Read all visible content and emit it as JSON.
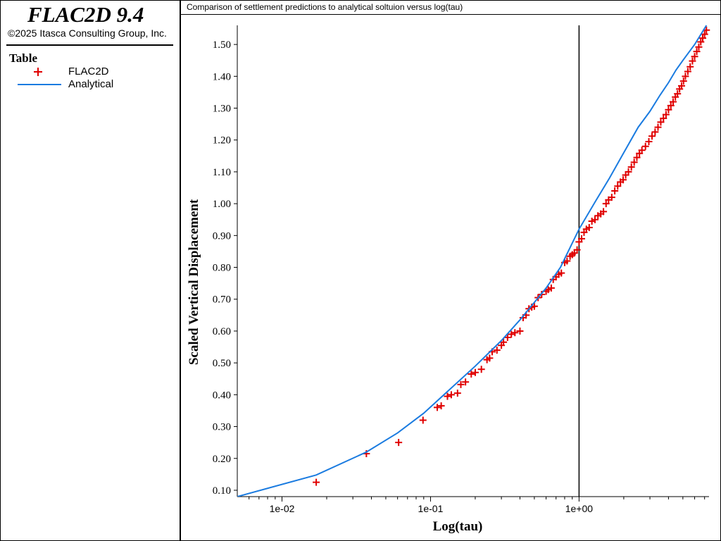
{
  "app": {
    "title": "FLAC2D 9.4",
    "copyright": "©2025 Itasca Consulting Group, Inc."
  },
  "legend": {
    "title": "Table",
    "items": [
      {
        "label": "FLAC2D",
        "marker": "plus",
        "color": "#e00000"
      },
      {
        "label": "Analytical",
        "marker": "line",
        "color": "#1a7be0"
      }
    ]
  },
  "chart_title": "Comparison of settlement predictions to analytical soltuion versus log(tau)",
  "chart_data": {
    "type": "scatter",
    "title": "Comparison of settlement predictions to analytical soltuion versus log(tau)",
    "xlabel": "Log(tau)",
    "ylabel": "Scaled Vertical Displacement",
    "x_scale": "log",
    "xlim": [
      0.005,
      7.5
    ],
    "ylim": [
      0.08,
      1.56
    ],
    "x_ticks": [
      "1e-02",
      "1e-01",
      "1e+00"
    ],
    "x_tick_values": [
      0.01,
      0.1,
      1
    ],
    "y_ticks": [
      "0.10",
      "0.20",
      "0.30",
      "0.40",
      "0.50",
      "0.60",
      "0.70",
      "0.80",
      "0.90",
      "1.00",
      "1.10",
      "1.20",
      "1.30",
      "1.40",
      "1.50"
    ],
    "y_tick_values": [
      0.1,
      0.2,
      0.3,
      0.4,
      0.5,
      0.6,
      0.7,
      0.8,
      0.9,
      1.0,
      1.1,
      1.2,
      1.3,
      1.4,
      1.5
    ],
    "reference_line_x": 1,
    "series": [
      {
        "name": "FLAC2D",
        "kind": "scatter",
        "color": "#e00000",
        "points": [
          [
            0.017,
            0.125
          ],
          [
            0.037,
            0.215
          ],
          [
            0.061,
            0.25
          ],
          [
            0.089,
            0.32
          ],
          [
            0.111,
            0.36
          ],
          [
            0.118,
            0.365
          ],
          [
            0.13,
            0.395
          ],
          [
            0.138,
            0.4
          ],
          [
            0.152,
            0.405
          ],
          [
            0.16,
            0.432
          ],
          [
            0.172,
            0.44
          ],
          [
            0.188,
            0.465
          ],
          [
            0.2,
            0.47
          ],
          [
            0.22,
            0.48
          ],
          [
            0.24,
            0.51
          ],
          [
            0.25,
            0.515
          ],
          [
            0.26,
            0.535
          ],
          [
            0.28,
            0.54
          ],
          [
            0.3,
            0.555
          ],
          [
            0.31,
            0.565
          ],
          [
            0.33,
            0.58
          ],
          [
            0.35,
            0.59
          ],
          [
            0.37,
            0.595
          ],
          [
            0.4,
            0.6
          ],
          [
            0.42,
            0.642
          ],
          [
            0.44,
            0.65
          ],
          [
            0.46,
            0.67
          ],
          [
            0.48,
            0.675
          ],
          [
            0.5,
            0.678
          ],
          [
            0.53,
            0.705
          ],
          [
            0.56,
            0.715
          ],
          [
            0.6,
            0.725
          ],
          [
            0.62,
            0.73
          ],
          [
            0.65,
            0.735
          ],
          [
            0.67,
            0.762
          ],
          [
            0.7,
            0.77
          ],
          [
            0.73,
            0.778
          ],
          [
            0.76,
            0.782
          ],
          [
            0.8,
            0.815
          ],
          [
            0.83,
            0.82
          ],
          [
            0.87,
            0.835
          ],
          [
            0.9,
            0.84
          ],
          [
            0.93,
            0.845
          ],
          [
            0.97,
            0.855
          ],
          [
            1.0,
            0.88
          ],
          [
            1.04,
            0.89
          ],
          [
            1.08,
            0.91
          ],
          [
            1.12,
            0.92
          ],
          [
            1.17,
            0.925
          ],
          [
            1.22,
            0.945
          ],
          [
            1.28,
            0.95
          ],
          [
            1.34,
            0.962
          ],
          [
            1.4,
            0.968
          ],
          [
            1.46,
            0.975
          ],
          [
            1.52,
            1.0
          ],
          [
            1.58,
            1.012
          ],
          [
            1.66,
            1.02
          ],
          [
            1.74,
            1.04
          ],
          [
            1.82,
            1.055
          ],
          [
            1.9,
            1.068
          ],
          [
            1.98,
            1.075
          ],
          [
            2.06,
            1.09
          ],
          [
            2.15,
            1.1
          ],
          [
            2.25,
            1.115
          ],
          [
            2.35,
            1.13
          ],
          [
            2.45,
            1.145
          ],
          [
            2.55,
            1.158
          ],
          [
            2.65,
            1.168
          ],
          [
            2.8,
            1.18
          ],
          [
            2.95,
            1.195
          ],
          [
            3.1,
            1.212
          ],
          [
            3.25,
            1.225
          ],
          [
            3.4,
            1.24
          ],
          [
            3.55,
            1.256
          ],
          [
            3.7,
            1.268
          ],
          [
            3.85,
            1.28
          ],
          [
            4.0,
            1.295
          ],
          [
            4.15,
            1.308
          ],
          [
            4.3,
            1.32
          ],
          [
            4.45,
            1.335
          ],
          [
            4.6,
            1.345
          ],
          [
            4.75,
            1.36
          ],
          [
            4.9,
            1.37
          ],
          [
            5.05,
            1.385
          ],
          [
            5.2,
            1.4
          ],
          [
            5.4,
            1.415
          ],
          [
            5.6,
            1.43
          ],
          [
            5.8,
            1.448
          ],
          [
            6.0,
            1.462
          ],
          [
            6.2,
            1.478
          ],
          [
            6.4,
            1.492
          ],
          [
            6.6,
            1.508
          ],
          [
            6.8,
            1.52
          ],
          [
            7.0,
            1.532
          ],
          [
            7.2,
            1.545
          ]
        ]
      },
      {
        "name": "Analytical",
        "kind": "line",
        "color": "#1a7be0",
        "points": [
          [
            0.005,
            0.08
          ],
          [
            0.017,
            0.148
          ],
          [
            0.037,
            0.22
          ],
          [
            0.06,
            0.28
          ],
          [
            0.09,
            0.342
          ],
          [
            0.13,
            0.41
          ],
          [
            0.2,
            0.49
          ],
          [
            0.3,
            0.57
          ],
          [
            0.4,
            0.635
          ],
          [
            0.5,
            0.69
          ],
          [
            0.6,
            0.735
          ],
          [
            0.75,
            0.8
          ],
          [
            1.0,
            0.92
          ],
          [
            1.3,
            1.01
          ],
          [
            1.6,
            1.08
          ],
          [
            2.0,
            1.16
          ],
          [
            2.5,
            1.24
          ],
          [
            3.0,
            1.29
          ],
          [
            3.5,
            1.34
          ],
          [
            4.0,
            1.38
          ],
          [
            4.5,
            1.42
          ],
          [
            5.0,
            1.45
          ],
          [
            6.0,
            1.5
          ],
          [
            7.2,
            1.56
          ]
        ]
      }
    ]
  }
}
